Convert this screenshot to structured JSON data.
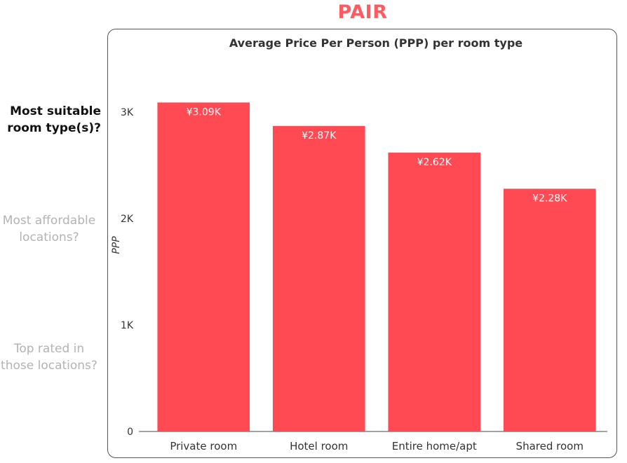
{
  "header": {
    "title": "PAIR"
  },
  "questions": [
    {
      "label": "Most suitable room type(s)?",
      "active": true
    },
    {
      "label": "Most affordable locations?",
      "active": false
    },
    {
      "label": "Top rated in those locations?",
      "active": false
    }
  ],
  "colors": {
    "accent": "#ff5a5f",
    "bar": "#ff4a54",
    "active_text": "#111111",
    "dim_text": "#b3b3b3"
  },
  "chart_data": {
    "type": "bar",
    "title": "Average Price Per Person (PPP) per room type",
    "xlabel": "",
    "ylabel": "PPP",
    "categories": [
      "Private room",
      "Hotel room",
      "Entire home/apt",
      "Shared room"
    ],
    "values": [
      3090,
      2870,
      2620,
      2280
    ],
    "data_labels": [
      "¥3.09K",
      "¥2.87K",
      "¥2.62K",
      "¥2.28K"
    ],
    "yticks": [
      0,
      1000,
      2000,
      3000
    ],
    "ytick_labels": [
      "0",
      "1K",
      "2K",
      "3K"
    ],
    "ylim": [
      0,
      3400
    ],
    "grid": false,
    "legend": "none"
  }
}
